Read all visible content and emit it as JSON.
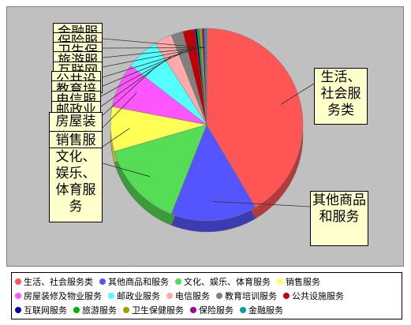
{
  "chart_data": {
    "type": "pie",
    "categories": [
      "生活、社会服务类",
      "其他商品和服务",
      "文化、娱乐、体育服务",
      "销售服务",
      "房屋装修及物业服务",
      "邮政业服务",
      "电信服务",
      "教育培训服务",
      "公共设施服务",
      "互联网服务",
      "旅游服务",
      "卫生保健服务",
      "保险服务",
      "金融服务"
    ],
    "values": [
      41.5,
      14.5,
      14.5,
      7.5,
      7.5,
      5.5,
      3,
      2,
      2,
      0.4,
      0.4,
      0.4,
      0.4,
      0.4
    ],
    "colors": [
      "#ff5555",
      "#5555ff",
      "#55dd55",
      "#ffff55",
      "#ff55ff",
      "#55ffff",
      "#ffaaaa",
      "#808080",
      "#c00000",
      "#0000a0",
      "#00b000",
      "#a0a000",
      "#a000a0",
      "#00a0a0"
    ],
    "legend": "bottom"
  }
}
